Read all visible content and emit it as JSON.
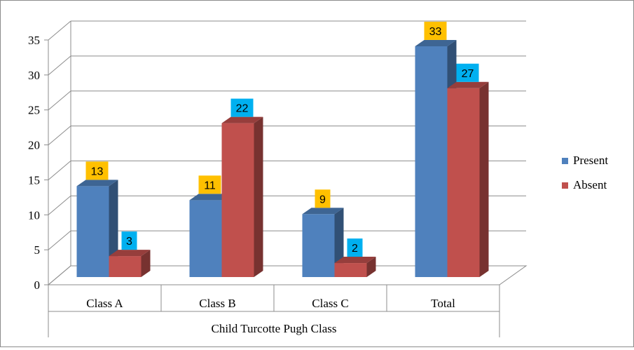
{
  "chart_data": {
    "type": "bar",
    "categories": [
      "Class A",
      "Class B",
      "Class C",
      "Total"
    ],
    "series": [
      {
        "name": "Present",
        "values": [
          13,
          11,
          9,
          33
        ],
        "color": "#4F81BD",
        "label_bg": "#FFC000"
      },
      {
        "name": "Absent",
        "values": [
          3,
          22,
          2,
          27
        ],
        "color": "#C0504D",
        "label_bg": "#00B0F0"
      }
    ],
    "xlabel": "Child Turcotte Pugh Class",
    "ylabel": "",
    "ylim": [
      0,
      35
    ],
    "yticks": [
      0,
      5,
      10,
      15,
      20,
      25,
      30,
      35
    ],
    "grid": true,
    "legend": "right",
    "three_d": true
  }
}
